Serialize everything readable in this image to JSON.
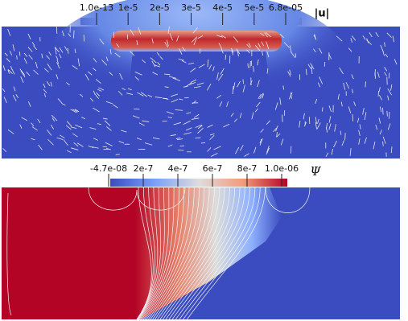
{
  "colorbars": [
    {
      "title": "|u|",
      "ticks": [
        "1.0e-13",
        "1e-5",
        "2e-5",
        "3e-5",
        "4e-5",
        "5e-5",
        "6.8e-05"
      ]
    },
    {
      "title": "Ψ",
      "ticks": [
        "-4.7e-08",
        "2e-7",
        "4e-7",
        "6e-7",
        "8e-7",
        "1.0e-06"
      ]
    }
  ]
}
